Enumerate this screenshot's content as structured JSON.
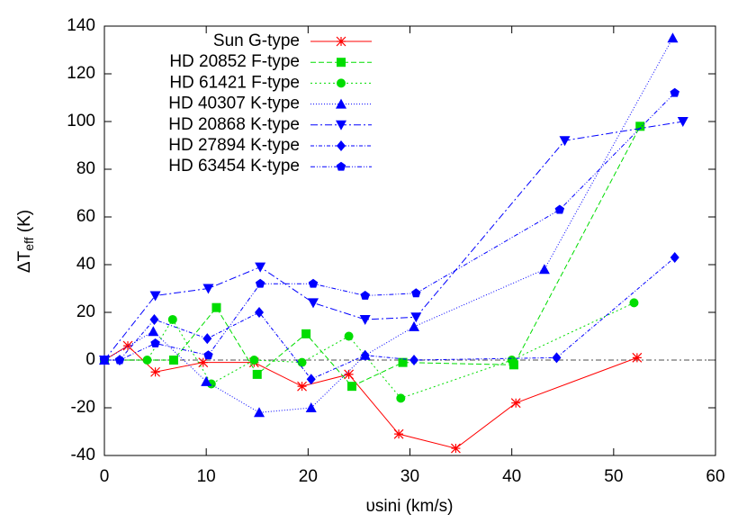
{
  "chart_data": {
    "type": "line",
    "xlabel": "υsini (km/s)",
    "ylabel": [
      "ΔT",
      "eff",
      " (K)"
    ],
    "xlim": [
      0,
      60
    ],
    "xticks": [
      0,
      10,
      20,
      30,
      40,
      50,
      60
    ],
    "ylim": [
      -40,
      140
    ],
    "yticks": [
      -40,
      -20,
      0,
      20,
      40,
      60,
      80,
      100,
      120,
      140
    ],
    "zero_line": true,
    "legend": "upper-left",
    "series": [
      {
        "name": "Sun G-type",
        "color": "#ff0000",
        "marker": "asterisk",
        "dash": "none",
        "x": [
          0,
          2.3,
          5,
          9.7,
          14.7,
          19.4,
          24,
          28.9,
          34.5,
          40.4,
          52.3
        ],
        "values": [
          0,
          6,
          -5,
          -1,
          -1,
          -11,
          -6,
          -31,
          -37,
          -18,
          1
        ]
      },
      {
        "name": "HD 20852 F-type",
        "color": "#00dd00",
        "marker": "square",
        "dash": "6,3",
        "x": [
          0,
          6.8,
          11,
          15,
          19.8,
          24.3,
          29.3,
          40.2,
          52.6
        ],
        "values": [
          0,
          0,
          22,
          -6,
          11,
          -11,
          -1,
          -2,
          98
        ]
      },
      {
        "name": "HD 61421 F-type",
        "color": "#00dd00",
        "marker": "circle",
        "dash": "2,3",
        "x": [
          0,
          4.2,
          6.7,
          10.5,
          14.7,
          19.4,
          24,
          29.1,
          40,
          52
        ],
        "values": [
          0,
          0,
          17,
          -10,
          0,
          -1,
          10,
          -16,
          0,
          24
        ]
      },
      {
        "name": "HD 40307 K-type",
        "color": "#0000ff",
        "marker": "triangle-up",
        "dash": "1,2",
        "x": [
          0,
          4.8,
          10,
          15.2,
          20.3,
          25.6,
          30.4,
          43.2,
          55.8
        ],
        "values": [
          0,
          12,
          -9,
          -22,
          -20,
          2,
          14,
          38,
          135
        ]
      },
      {
        "name": "HD 20868 K-type",
        "color": "#0000ff",
        "marker": "triangle-down",
        "dash": "8,3,2,3",
        "x": [
          0,
          5,
          10.2,
          15.3,
          20.5,
          25.6,
          30.6,
          45.2,
          56.8
        ],
        "values": [
          0,
          27,
          30,
          39,
          24,
          17,
          18,
          92,
          100
        ]
      },
      {
        "name": "HD 27894 K-type",
        "color": "#0000ff",
        "marker": "diamond",
        "dash": "4,2,1,2",
        "x": [
          0,
          1.5,
          4.9,
          10.1,
          15.2,
          20.3,
          25.6,
          30.4,
          44.4,
          56
        ],
        "values": [
          0,
          0,
          17,
          9,
          20,
          -8,
          2,
          0,
          1,
          43
        ]
      },
      {
        "name": "HD 63454 K-type",
        "color": "#0000ff",
        "marker": "pentagon",
        "dash": "5,2,1,2,1,2",
        "x": [
          0,
          1.5,
          5,
          10.2,
          15.3,
          20.5,
          25.6,
          30.6,
          44.7,
          56
        ],
        "values": [
          0,
          0,
          7,
          2,
          32,
          32,
          27,
          28,
          63,
          112
        ]
      }
    ]
  }
}
